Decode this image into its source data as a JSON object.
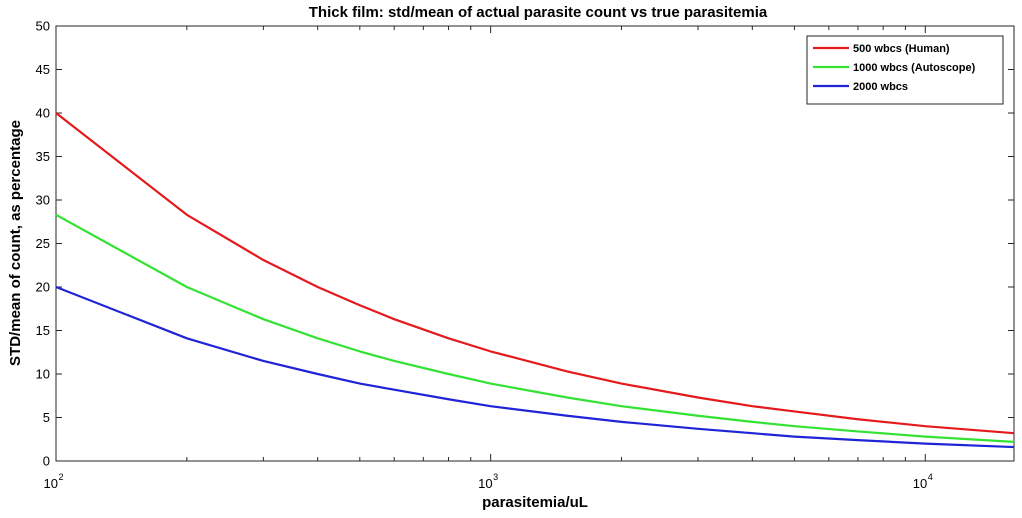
{
  "chart_data": {
    "type": "line",
    "title": "Thick film: std/mean of actual parasite count vs true parasitemia",
    "xlabel": "parasitemia/uL",
    "ylabel": "STD/mean of count, as percentage",
    "xscale": "log",
    "xlim": [
      100,
      16000
    ],
    "ylim": [
      0,
      50
    ],
    "x_ticks": [
      {
        "base": "10",
        "exp": "2",
        "value": 100
      },
      {
        "base": "10",
        "exp": "3",
        "value": 1000
      },
      {
        "base": "10",
        "exp": "4",
        "value": 10000
      }
    ],
    "y_ticks": [
      0,
      5,
      10,
      15,
      20,
      25,
      30,
      35,
      40,
      45,
      50
    ],
    "grid": false,
    "legend_position": "top-right",
    "x": [
      100,
      200,
      300,
      400,
      500,
      600,
      800,
      1000,
      1500,
      2000,
      3000,
      4000,
      5000,
      7000,
      10000,
      16000
    ],
    "series": [
      {
        "name": "500 wbcs (Human)",
        "color": "#e41a1c",
        "values": [
          40.0,
          28.3,
          23.1,
          20.0,
          17.9,
          16.3,
          14.1,
          12.6,
          10.3,
          8.9,
          7.3,
          6.3,
          5.7,
          4.8,
          4.0,
          3.2
        ]
      },
      {
        "name": "1000 wbcs (Autoscope)",
        "color": "#33e233",
        "values": [
          28.3,
          20.0,
          16.3,
          14.1,
          12.6,
          11.5,
          10.0,
          8.9,
          7.3,
          6.3,
          5.2,
          4.5,
          4.0,
          3.4,
          2.8,
          2.2
        ]
      },
      {
        "name": "2000 wbcs",
        "color": "#1f24d6",
        "values": [
          20.0,
          14.1,
          11.5,
          10.0,
          8.9,
          8.2,
          7.1,
          6.3,
          5.2,
          4.5,
          3.7,
          3.2,
          2.8,
          2.4,
          2.0,
          1.6
        ]
      }
    ]
  }
}
